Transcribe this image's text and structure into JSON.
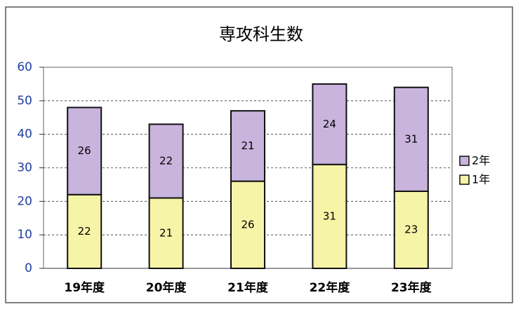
{
  "chart_data": {
    "type": "stacked_bar",
    "title": "専攻科生数",
    "categories": [
      "19年度",
      "20年度",
      "21年度",
      "22年度",
      "23年度"
    ],
    "series": [
      {
        "name": "1年",
        "color": "#f6f4a6",
        "values": [
          22,
          21,
          26,
          31,
          23
        ]
      },
      {
        "name": "2年",
        "color": "#c8b4dc",
        "values": [
          26,
          22,
          21,
          24,
          31
        ]
      }
    ],
    "ylim": [
      0,
      60
    ],
    "yticks": [
      0,
      10,
      20,
      30,
      40,
      50,
      60
    ],
    "grid": true,
    "legend": "right"
  }
}
